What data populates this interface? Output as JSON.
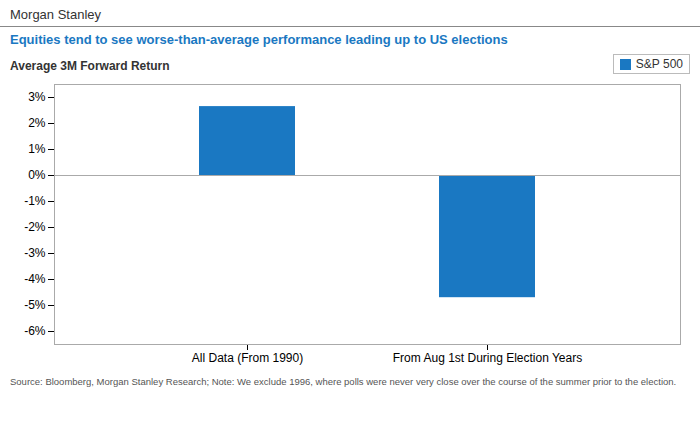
{
  "chart_data": {
    "type": "bar",
    "title": "Morgan Stanley",
    "subtitle": "Equities tend to see worse-than-average performance leading up to US elections",
    "ylabel": "Average 3M Forward Return",
    "source": "Source: Bloomberg, Morgan Stanley Research; Note: We exclude 1996, where polls were never very close over the course of the summer prior to the election.",
    "categories": [
      "All Data (From 1990)",
      "From Aug 1st During Election Years"
    ],
    "series": [
      {
        "name": "S&P 500",
        "color": "#1a78c2",
        "values": [
          2.65,
          -4.7
        ]
      }
    ],
    "ylim": [
      -6.5,
      3.5
    ],
    "yticks": [
      {
        "value": -6,
        "label": "-6%"
      },
      {
        "value": -5,
        "label": "-5%"
      },
      {
        "value": -4,
        "label": "-4%"
      },
      {
        "value": -3,
        "label": "-3%"
      },
      {
        "value": -2,
        "label": "-2%"
      },
      {
        "value": -1,
        "label": "-1%"
      },
      {
        "value": 0,
        "label": "0%"
      },
      {
        "value": 1,
        "label": "1%"
      },
      {
        "value": 2,
        "label": "2%"
      },
      {
        "value": 3,
        "label": "3%"
      }
    ],
    "legend": "upper right",
    "grid": false
  }
}
